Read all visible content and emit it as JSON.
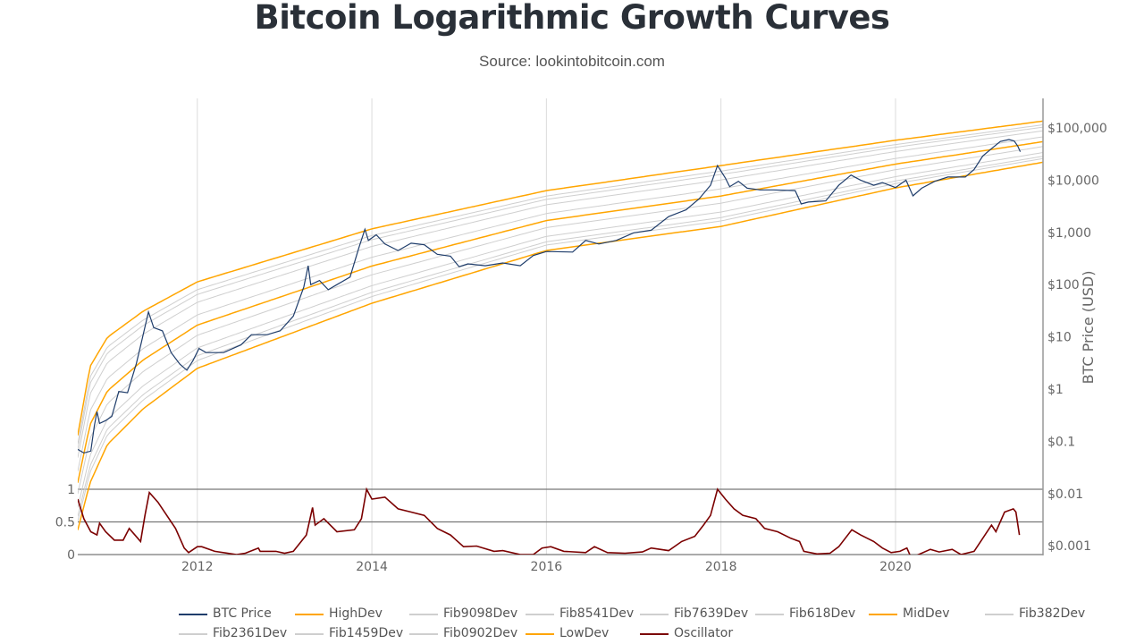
{
  "title": "Bitcoin Logarithmic Growth Curves",
  "subtitle": "Source: lookintobitcoin.com",
  "chart_data": {
    "type": "line",
    "title": "Bitcoin Logarithmic Growth Curves",
    "subtitle": "Source: lookintobitcoin.com",
    "x_range": [
      2010.63,
      2021.69
    ],
    "x_ticks": [
      "2012",
      "2014",
      "2016",
      "2018",
      "2020"
    ],
    "x_tick_values": [
      2012,
      2014,
      2016,
      2018,
      2020
    ],
    "y_right": {
      "label": "BTC Price (USD)",
      "scale": "log",
      "ticks": [
        "$100,000",
        "$10,000",
        "$1,000",
        "$100",
        "$10",
        "$1",
        "$0.1",
        "$0.01",
        "$0.001"
      ],
      "tick_values": [
        100000,
        10000,
        1000,
        100,
        10,
        1,
        0.1,
        0.01,
        0.001
      ]
    },
    "y_left": {
      "ticks": [
        "1",
        "0.5",
        "0"
      ],
      "tick_values": [
        1,
        0.5,
        0
      ]
    },
    "grid": true,
    "legend_placement": "bottom",
    "colors": {
      "btc": "#1f3d6b",
      "dev": "#ffa500",
      "fib": "#cfcfcf",
      "oscillator": "#7b0000"
    },
    "highdev": [
      [
        2010.63,
        0.13
      ],
      [
        2010.77,
        2.7
      ],
      [
        2010.97,
        9.8
      ],
      [
        2011.38,
        31
      ],
      [
        2012,
        113
      ],
      [
        2014,
        1170
      ],
      [
        2016,
        6300
      ],
      [
        2018,
        19000
      ],
      [
        2020,
        58000
      ],
      [
        2021.69,
        135000
      ]
    ],
    "lowdev": [
      [
        2010.63,
        0.002
      ],
      [
        2010.77,
        0.016
      ],
      [
        2010.97,
        0.087
      ],
      [
        2011.38,
        0.42
      ],
      [
        2012,
        2.5
      ],
      [
        2014,
        44
      ],
      [
        2016,
        450
      ],
      [
        2018,
        1300
      ],
      [
        2020,
        7100
      ],
      [
        2021.69,
        22000
      ]
    ],
    "fib_levels": [
      {
        "name": "Fib9098Dev",
        "level": 0.9098
      },
      {
        "name": "Fib8541Dev",
        "level": 0.8541
      },
      {
        "name": "Fib7639Dev",
        "level": 0.7639
      },
      {
        "name": "Fib618Dev",
        "level": 0.618
      },
      {
        "name": "MidDev",
        "level": 0.5
      },
      {
        "name": "Fib382Dev",
        "level": 0.382
      },
      {
        "name": "Fib2361Dev",
        "level": 0.2361
      },
      {
        "name": "Fib1459Dev",
        "level": 0.1459
      },
      {
        "name": "Fib0902Dev",
        "level": 0.0902
      }
    ],
    "btc_price": [
      [
        2010.63,
        0.07
      ],
      [
        2010.7,
        0.06
      ],
      [
        2010.78,
        0.065
      ],
      [
        2010.82,
        0.2
      ],
      [
        2010.85,
        0.37
      ],
      [
        2010.88,
        0.22
      ],
      [
        2010.95,
        0.25
      ],
      [
        2011.02,
        0.3
      ],
      [
        2011.1,
        0.9
      ],
      [
        2011.2,
        0.85
      ],
      [
        2011.3,
        3
      ],
      [
        2011.36,
        8
      ],
      [
        2011.44,
        30
      ],
      [
        2011.5,
        15
      ],
      [
        2011.6,
        13
      ],
      [
        2011.7,
        5
      ],
      [
        2011.8,
        3
      ],
      [
        2011.88,
        2.3
      ],
      [
        2011.95,
        3.5
      ],
      [
        2012.02,
        6
      ],
      [
        2012.1,
        5
      ],
      [
        2012.3,
        5
      ],
      [
        2012.5,
        7
      ],
      [
        2012.62,
        11
      ],
      [
        2012.8,
        11
      ],
      [
        2012.95,
        13
      ],
      [
        2013.1,
        25
      ],
      [
        2013.22,
        90
      ],
      [
        2013.27,
        230
      ],
      [
        2013.3,
        100
      ],
      [
        2013.4,
        120
      ],
      [
        2013.5,
        80
      ],
      [
        2013.6,
        100
      ],
      [
        2013.75,
        140
      ],
      [
        2013.85,
        500
      ],
      [
        2013.92,
        1150
      ],
      [
        2013.96,
        700
      ],
      [
        2014.05,
        900
      ],
      [
        2014.15,
        600
      ],
      [
        2014.3,
        450
      ],
      [
        2014.45,
        620
      ],
      [
        2014.6,
        580
      ],
      [
        2014.75,
        380
      ],
      [
        2014.9,
        350
      ],
      [
        2015.0,
        220
      ],
      [
        2015.1,
        250
      ],
      [
        2015.3,
        230
      ],
      [
        2015.5,
        260
      ],
      [
        2015.7,
        230
      ],
      [
        2015.85,
        360
      ],
      [
        2016.0,
        430
      ],
      [
        2016.3,
        420
      ],
      [
        2016.45,
        700
      ],
      [
        2016.6,
        600
      ],
      [
        2016.8,
        700
      ],
      [
        2017.0,
        980
      ],
      [
        2017.2,
        1100
      ],
      [
        2017.4,
        2000
      ],
      [
        2017.6,
        2700
      ],
      [
        2017.75,
        4400
      ],
      [
        2017.88,
        8000
      ],
      [
        2017.96,
        19000
      ],
      [
        2018.05,
        11000
      ],
      [
        2018.1,
        7500
      ],
      [
        2018.2,
        9500
      ],
      [
        2018.3,
        7000
      ],
      [
        2018.45,
        6500
      ],
      [
        2018.6,
        6500
      ],
      [
        2018.85,
        6300
      ],
      [
        2018.92,
        3500
      ],
      [
        2019.0,
        3800
      ],
      [
        2019.2,
        4000
      ],
      [
        2019.35,
        8000
      ],
      [
        2019.49,
        12500
      ],
      [
        2019.6,
        10000
      ],
      [
        2019.75,
        8000
      ],
      [
        2019.85,
        9000
      ],
      [
        2020.0,
        7200
      ],
      [
        2020.12,
        10000
      ],
      [
        2020.2,
        5000
      ],
      [
        2020.3,
        7000
      ],
      [
        2020.45,
        9500
      ],
      [
        2020.6,
        11500
      ],
      [
        2020.8,
        11500
      ],
      [
        2020.9,
        16000
      ],
      [
        2021.0,
        29000
      ],
      [
        2021.1,
        40000
      ],
      [
        2021.2,
        55000
      ],
      [
        2021.3,
        60000
      ],
      [
        2021.36,
        56000
      ],
      [
        2021.4,
        45000
      ],
      [
        2021.43,
        35000
      ]
    ],
    "oscillator": [
      [
        2010.63,
        0.85
      ],
      [
        2010.7,
        0.55
      ],
      [
        2010.78,
        0.35
      ],
      [
        2010.85,
        0.3
      ],
      [
        2010.88,
        0.48
      ],
      [
        2010.95,
        0.35
      ],
      [
        2011.05,
        0.22
      ],
      [
        2011.15,
        0.22
      ],
      [
        2011.22,
        0.4
      ],
      [
        2011.35,
        0.2
      ],
      [
        2011.4,
        0.6
      ],
      [
        2011.45,
        0.95
      ],
      [
        2011.55,
        0.8
      ],
      [
        2011.65,
        0.6
      ],
      [
        2011.75,
        0.4
      ],
      [
        2011.85,
        0.1
      ],
      [
        2011.9,
        0.03
      ],
      [
        2012.0,
        0.12
      ],
      [
        2012.05,
        0.12
      ],
      [
        2012.2,
        0.05
      ],
      [
        2012.45,
        0.0
      ],
      [
        2012.55,
        0.02
      ],
      [
        2012.7,
        0.1
      ],
      [
        2012.72,
        0.05
      ],
      [
        2012.9,
        0.05
      ],
      [
        2013.0,
        0.02
      ],
      [
        2013.1,
        0.05
      ],
      [
        2013.25,
        0.3
      ],
      [
        2013.32,
        0.72
      ],
      [
        2013.35,
        0.45
      ],
      [
        2013.45,
        0.55
      ],
      [
        2013.6,
        0.35
      ],
      [
        2013.8,
        0.38
      ],
      [
        2013.88,
        0.55
      ],
      [
        2013.94,
        1.0
      ],
      [
        2014.0,
        0.85
      ],
      [
        2014.15,
        0.88
      ],
      [
        2014.3,
        0.7
      ],
      [
        2014.45,
        0.65
      ],
      [
        2014.6,
        0.6
      ],
      [
        2014.75,
        0.4
      ],
      [
        2014.9,
        0.3
      ],
      [
        2015.05,
        0.12
      ],
      [
        2015.2,
        0.13
      ],
      [
        2015.4,
        0.05
      ],
      [
        2015.5,
        0.06
      ],
      [
        2015.7,
        0.0
      ],
      [
        2015.85,
        0.0
      ],
      [
        2015.95,
        0.1
      ],
      [
        2016.05,
        0.12
      ],
      [
        2016.2,
        0.05
      ],
      [
        2016.45,
        0.03
      ],
      [
        2016.55,
        0.12
      ],
      [
        2016.7,
        0.03
      ],
      [
        2016.9,
        0.02
      ],
      [
        2017.1,
        0.04
      ],
      [
        2017.2,
        0.1
      ],
      [
        2017.4,
        0.06
      ],
      [
        2017.55,
        0.2
      ],
      [
        2017.7,
        0.28
      ],
      [
        2017.8,
        0.45
      ],
      [
        2017.88,
        0.6
      ],
      [
        2017.96,
        1.0
      ],
      [
        2018.05,
        0.85
      ],
      [
        2018.15,
        0.7
      ],
      [
        2018.25,
        0.6
      ],
      [
        2018.4,
        0.55
      ],
      [
        2018.5,
        0.4
      ],
      [
        2018.65,
        0.35
      ],
      [
        2018.8,
        0.25
      ],
      [
        2018.9,
        0.2
      ],
      [
        2018.95,
        0.05
      ],
      [
        2019.1,
        0.01
      ],
      [
        2019.25,
        0.02
      ],
      [
        2019.35,
        0.12
      ],
      [
        2019.5,
        0.38
      ],
      [
        2019.6,
        0.3
      ],
      [
        2019.75,
        0.2
      ],
      [
        2019.85,
        0.1
      ],
      [
        2019.95,
        0.03
      ],
      [
        2020.05,
        0.05
      ],
      [
        2020.13,
        0.1
      ],
      [
        2020.18,
        -0.05
      ],
      [
        2020.4,
        0.08
      ],
      [
        2020.5,
        0.04
      ],
      [
        2020.65,
        0.08
      ],
      [
        2020.75,
        0.0
      ],
      [
        2020.9,
        0.05
      ],
      [
        2021.0,
        0.25
      ],
      [
        2021.1,
        0.45
      ],
      [
        2021.15,
        0.35
      ],
      [
        2021.25,
        0.65
      ],
      [
        2021.35,
        0.7
      ],
      [
        2021.38,
        0.65
      ],
      [
        2021.42,
        0.3
      ]
    ],
    "legend": [
      "BTC Price",
      "HighDev",
      "Fib9098Dev",
      "Fib8541Dev",
      "Fib7639Dev",
      "Fib618Dev",
      "MidDev",
      "Fib382Dev",
      "Fib2361Dev",
      "Fib1459Dev",
      "Fib0902Dev",
      "LowDev",
      "Oscillator"
    ]
  }
}
